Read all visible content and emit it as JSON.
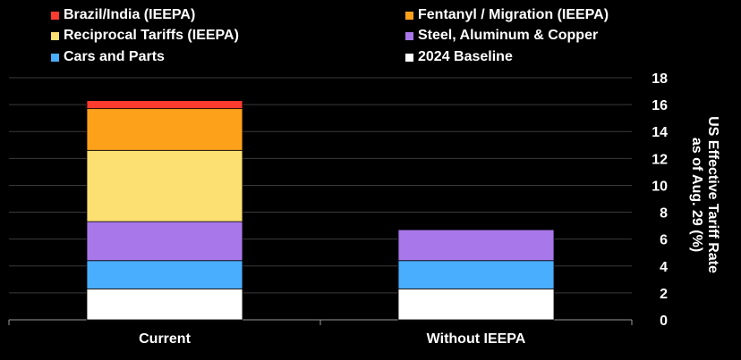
{
  "chart_data": {
    "type": "bar",
    "stacked": true,
    "categories": [
      "Current",
      "Without IEEPA"
    ],
    "series": [
      {
        "name": "2024 Baseline",
        "color": "#ffffff",
        "values": [
          2.3,
          2.3
        ]
      },
      {
        "name": "Cars and Parts",
        "color": "#4aaeff",
        "values": [
          2.1,
          2.1
        ]
      },
      {
        "name": "Steel, Aluminum & Copper",
        "color": "#a877ea",
        "values": [
          2.9,
          2.3
        ]
      },
      {
        "name": "Reciprocal Tariffs (IEEPA)",
        "color": "#fde072",
        "values": [
          5.3,
          0
        ]
      },
      {
        "name": "Fentanyl / Migration (IEEPA)",
        "color": "#fda11b",
        "values": [
          3.1,
          0
        ]
      },
      {
        "name": "Brazil/India (IEEPA)",
        "color": "#ff3b30",
        "values": [
          0.6,
          0
        ]
      }
    ],
    "legend_order": [
      "Brazil/India (IEEPA)",
      "Fentanyl / Migration (IEEPA)",
      "Reciprocal Tariffs (IEEPA)",
      "Steel, Aluminum & Copper",
      "Cars and Parts",
      "2024 Baseline"
    ],
    "ylabel_lines": [
      "US Effective Tariff Rate",
      "as of Aug. 29 (%)"
    ],
    "ylim": [
      0,
      18
    ],
    "yticks": [
      0,
      2,
      4,
      6,
      8,
      10,
      12,
      14,
      16,
      18
    ],
    "yaxis_side": "right",
    "grid": true,
    "legend_position": "top"
  }
}
